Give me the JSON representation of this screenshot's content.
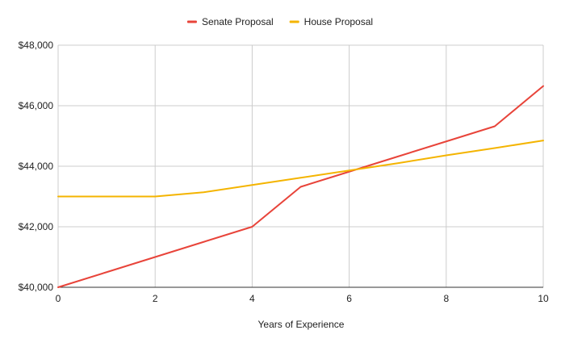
{
  "chart_data": {
    "type": "line",
    "xlabel": "Years of Experience",
    "ylabel": "",
    "xlim": [
      0,
      10
    ],
    "ylim": [
      40000,
      48000
    ],
    "x_ticks": [
      0,
      2,
      4,
      6,
      8,
      10
    ],
    "x_tick_labels": [
      "0",
      "2",
      "4",
      "6",
      "8",
      "10"
    ],
    "y_ticks": [
      40000,
      42000,
      44000,
      46000,
      48000
    ],
    "y_tick_labels": [
      "$40,000",
      "$42,000",
      "$44,000",
      "$46,000",
      "$48,000"
    ],
    "grid": true,
    "legend_position": "top-center",
    "series": [
      {
        "name": "Senate Proposal",
        "color": "#e8443a",
        "x": [
          0,
          1,
          2,
          3,
          4,
          5,
          6,
          7,
          8,
          9,
          10
        ],
        "values": [
          40000,
          40500,
          41000,
          41500,
          42000,
          43320,
          43820,
          44320,
          44820,
          45320,
          46650
        ]
      },
      {
        "name": "House Proposal",
        "color": "#f4b400",
        "x": [
          0,
          1,
          2,
          3,
          4,
          5,
          6,
          7,
          8,
          9,
          10
        ],
        "values": [
          43000,
          43000,
          43000,
          43140,
          43380,
          43620,
          43860,
          44100,
          44360,
          44600,
          44850
        ]
      }
    ]
  }
}
